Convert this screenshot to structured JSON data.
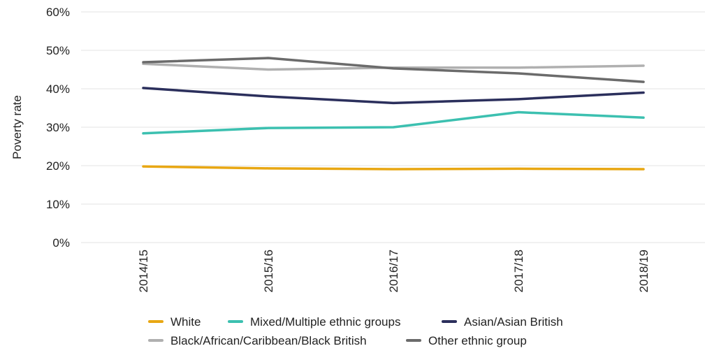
{
  "chart_data": {
    "type": "line",
    "title": "",
    "xlabel": "",
    "ylabel": "Poverty rate",
    "categories": [
      "2014/15",
      "2015/16",
      "2016/17",
      "2017/18",
      "2018/19"
    ],
    "ylim": [
      0,
      60
    ],
    "yticks": [
      0,
      10,
      20,
      30,
      40,
      50,
      60
    ],
    "ytick_labels": [
      "0%",
      "10%",
      "20%",
      "30%",
      "40%",
      "50%",
      "60%"
    ],
    "grid": true,
    "legend_position": "bottom",
    "series": [
      {
        "name": "White",
        "color": "#E8A713",
        "values": [
          19.8,
          19.3,
          19.1,
          19.2,
          19.1
        ]
      },
      {
        "name": "Mixed/Multiple ethnic groups",
        "color": "#3CC0B0",
        "values": [
          28.4,
          29.8,
          30.0,
          33.9,
          32.5
        ]
      },
      {
        "name": "Asian/Asian British",
        "color": "#2B2F5C",
        "values": [
          40.2,
          38.0,
          36.3,
          37.3,
          39.0
        ]
      },
      {
        "name": "Black/African/Caribbean/Black British",
        "color": "#B0B0B0",
        "values": [
          46.5,
          45.0,
          45.5,
          45.5,
          46.0
        ]
      },
      {
        "name": "Other ethnic group",
        "color": "#6B6B6B",
        "values": [
          46.9,
          48.0,
          45.3,
          44.0,
          41.8
        ]
      }
    ]
  }
}
